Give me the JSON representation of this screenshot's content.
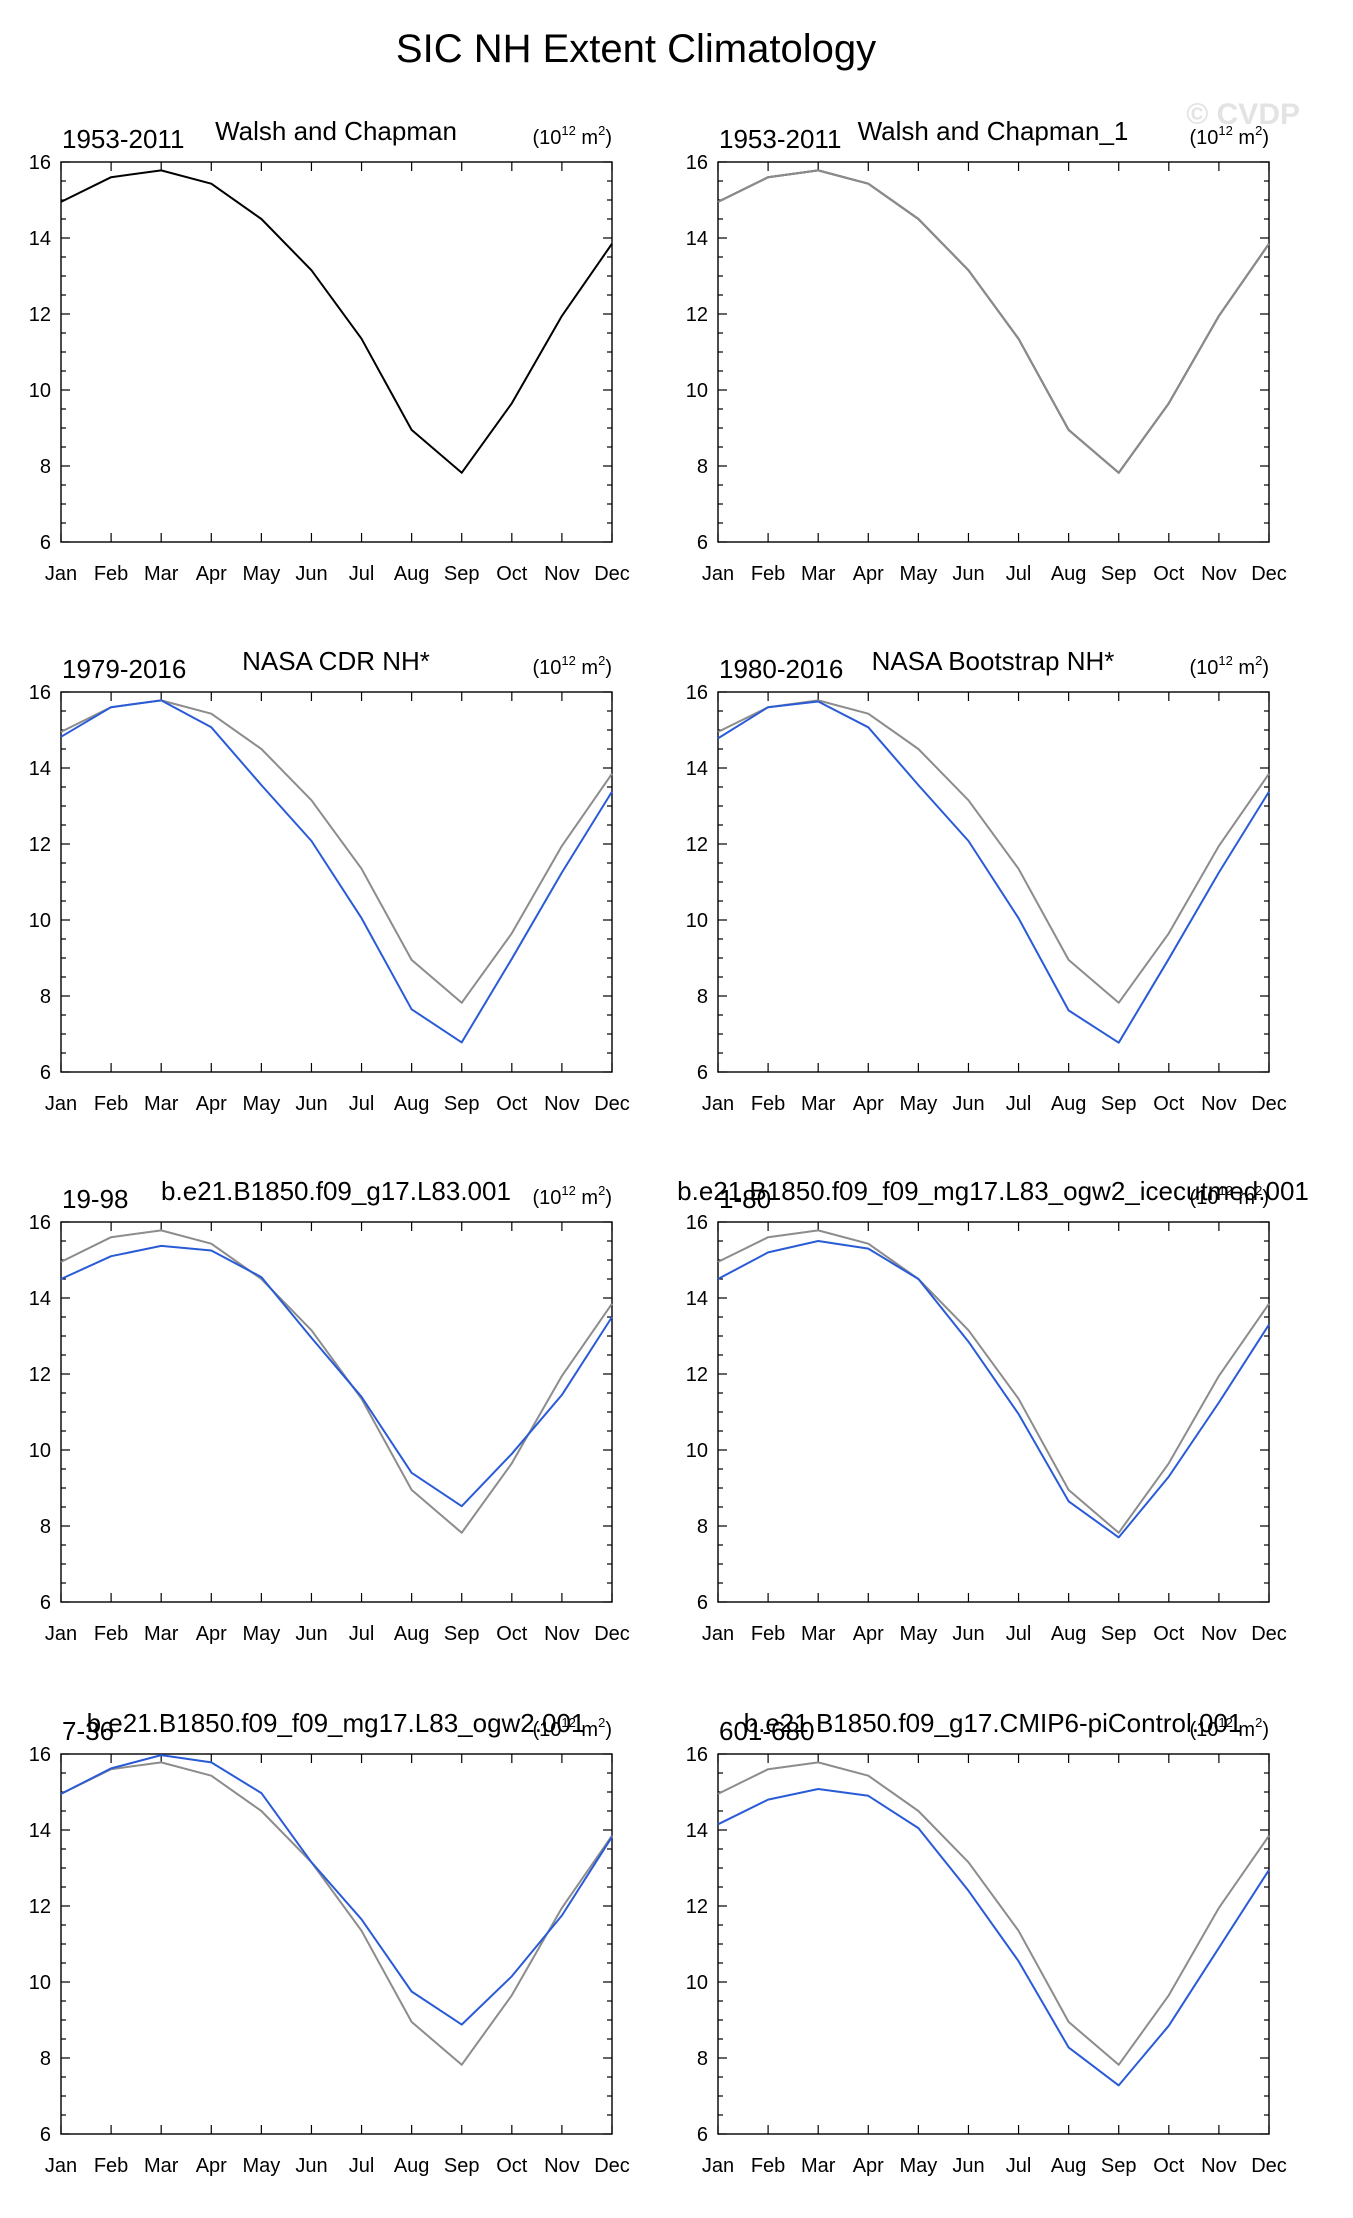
{
  "figure": {
    "title": "SIC NH Extent Climatology",
    "watermark": "© CVDP"
  },
  "colors": {
    "reference_line": "#8c8c8c",
    "model_line": "#2a5bd7",
    "first_panel_line": "#000000",
    "axis": "#000000"
  },
  "chart_data": [
    {
      "type": "line",
      "left_label": "1953-2011",
      "title": "Walsh and Chapman",
      "units_base": "(10",
      "units_exp": "12",
      "units_tail": " m",
      "units_sq": "2",
      "units_close": ")",
      "categories": [
        "Jan",
        "Feb",
        "Mar",
        "Apr",
        "May",
        "Jun",
        "Jul",
        "Aug",
        "Sep",
        "Oct",
        "Nov",
        "Dec"
      ],
      "ylim": [
        6,
        16
      ],
      "yticks": [
        6,
        8,
        10,
        12,
        14,
        16
      ],
      "series": [
        {
          "name": "Walsh and Chapman",
          "color": "#000000",
          "values": [
            14.95,
            15.6,
            15.78,
            15.43,
            14.5,
            13.15,
            11.35,
            8.95,
            7.82,
            9.65,
            11.95,
            13.85
          ]
        }
      ]
    },
    {
      "type": "line",
      "left_label": "1953-2011",
      "title": "Walsh and Chapman_1",
      "units_base": "(10",
      "units_exp": "12",
      "units_tail": " m",
      "units_sq": "2",
      "units_close": ")",
      "categories": [
        "Jan",
        "Feb",
        "Mar",
        "Apr",
        "May",
        "Jun",
        "Jul",
        "Aug",
        "Sep",
        "Oct",
        "Nov",
        "Dec"
      ],
      "ylim": [
        6,
        16
      ],
      "yticks": [
        6,
        8,
        10,
        12,
        14,
        16
      ],
      "series": [
        {
          "name": "Walsh and Chapman",
          "color": "#000000",
          "values": [
            14.95,
            15.6,
            15.78,
            15.43,
            14.5,
            13.15,
            11.35,
            8.95,
            7.82,
            9.65,
            11.95,
            13.85
          ]
        },
        {
          "name": "Walsh and Chapman_1",
          "color": "#8c8c8c",
          "values": [
            14.95,
            15.6,
            15.78,
            15.43,
            14.5,
            13.15,
            11.35,
            8.95,
            7.82,
            9.65,
            11.95,
            13.85
          ]
        }
      ]
    },
    {
      "type": "line",
      "left_label": "1979-2016",
      "title": "NASA CDR NH*",
      "units_base": "(10",
      "units_exp": "12",
      "units_tail": " m",
      "units_sq": "2",
      "units_close": ")",
      "categories": [
        "Jan",
        "Feb",
        "Mar",
        "Apr",
        "May",
        "Jun",
        "Jul",
        "Aug",
        "Sep",
        "Oct",
        "Nov",
        "Dec"
      ],
      "ylim": [
        6,
        16
      ],
      "yticks": [
        6,
        8,
        10,
        12,
        14,
        16
      ],
      "series": [
        {
          "name": "Walsh and Chapman",
          "color": "#8c8c8c",
          "values": [
            14.95,
            15.6,
            15.78,
            15.43,
            14.5,
            13.15,
            11.35,
            8.95,
            7.82,
            9.65,
            11.95,
            13.85
          ]
        },
        {
          "name": "NASA CDR NH*",
          "color": "#2a5bd7",
          "values": [
            14.82,
            15.6,
            15.78,
            15.07,
            13.55,
            12.08,
            10.05,
            7.65,
            6.78,
            8.98,
            11.25,
            13.38
          ]
        }
      ]
    },
    {
      "type": "line",
      "left_label": "1980-2016",
      "title": "NASA Bootstrap NH*",
      "units_base": "(10",
      "units_exp": "12",
      "units_tail": " m",
      "units_sq": "2",
      "units_close": ")",
      "categories": [
        "Jan",
        "Feb",
        "Mar",
        "Apr",
        "May",
        "Jun",
        "Jul",
        "Aug",
        "Sep",
        "Oct",
        "Nov",
        "Dec"
      ],
      "ylim": [
        6,
        16
      ],
      "yticks": [
        6,
        8,
        10,
        12,
        14,
        16
      ],
      "series": [
        {
          "name": "Walsh and Chapman",
          "color": "#8c8c8c",
          "values": [
            14.95,
            15.6,
            15.78,
            15.43,
            14.5,
            13.15,
            11.35,
            8.95,
            7.82,
            9.65,
            11.95,
            13.85
          ]
        },
        {
          "name": "NASA Bootstrap NH*",
          "color": "#2a5bd7",
          "values": [
            14.78,
            15.6,
            15.75,
            15.07,
            13.55,
            12.08,
            10.05,
            7.62,
            6.77,
            8.98,
            11.25,
            13.38
          ]
        }
      ]
    },
    {
      "type": "line",
      "left_label": "19-98",
      "title": "b.e21.B1850.f09_g17.L83.001",
      "units_base": "(10",
      "units_exp": "12",
      "units_tail": " m",
      "units_sq": "2",
      "units_close": ")",
      "categories": [
        "Jan",
        "Feb",
        "Mar",
        "Apr",
        "May",
        "Jun",
        "Jul",
        "Aug",
        "Sep",
        "Oct",
        "Nov",
        "Dec"
      ],
      "ylim": [
        6,
        16
      ],
      "yticks": [
        6,
        8,
        10,
        12,
        14,
        16
      ],
      "series": [
        {
          "name": "Walsh and Chapman",
          "color": "#8c8c8c",
          "values": [
            14.95,
            15.6,
            15.78,
            15.43,
            14.5,
            13.15,
            11.35,
            8.95,
            7.82,
            9.65,
            11.95,
            13.85
          ]
        },
        {
          "name": "b.e21.B1850.f09_g17.L83.001",
          "color": "#2a5bd7",
          "values": [
            14.5,
            15.1,
            15.37,
            15.25,
            14.55,
            12.95,
            11.4,
            9.4,
            8.52,
            9.9,
            11.45,
            13.5
          ]
        }
      ]
    },
    {
      "type": "line",
      "left_label": "1-80",
      "title": "b.e21.B1850.f09_f09_mg17.L83_ogw2_icecutmed.001",
      "units_base": "(10",
      "units_exp": "12",
      "units_tail": " m",
      "units_sq": "2",
      "units_close": ")",
      "categories": [
        "Jan",
        "Feb",
        "Mar",
        "Apr",
        "May",
        "Jun",
        "Jul",
        "Aug",
        "Sep",
        "Oct",
        "Nov",
        "Dec"
      ],
      "ylim": [
        6,
        16
      ],
      "yticks": [
        6,
        8,
        10,
        12,
        14,
        16
      ],
      "series": [
        {
          "name": "Walsh and Chapman",
          "color": "#8c8c8c",
          "values": [
            14.95,
            15.6,
            15.78,
            15.43,
            14.5,
            13.15,
            11.35,
            8.95,
            7.82,
            9.65,
            11.95,
            13.85
          ]
        },
        {
          "name": "b.e21.B1850.f09_f09_mg17.L83_ogw2_icecutmed.001",
          "color": "#2a5bd7",
          "values": [
            14.5,
            15.2,
            15.5,
            15.3,
            14.5,
            12.85,
            10.95,
            8.65,
            7.7,
            9.3,
            11.25,
            13.3
          ]
        }
      ]
    },
    {
      "type": "line",
      "left_label": "7-36",
      "title": "b.e21.B1850.f09_f09_mg17.L83_ogw2.001",
      "units_base": "(10",
      "units_exp": "12",
      "units_tail": " m",
      "units_sq": "2",
      "units_close": ")",
      "categories": [
        "Jan",
        "Feb",
        "Mar",
        "Apr",
        "May",
        "Jun",
        "Jul",
        "Aug",
        "Sep",
        "Oct",
        "Nov",
        "Dec"
      ],
      "ylim": [
        6,
        16
      ],
      "yticks": [
        6,
        8,
        10,
        12,
        14,
        16
      ],
      "series": [
        {
          "name": "Walsh and Chapman",
          "color": "#8c8c8c",
          "values": [
            14.95,
            15.6,
            15.78,
            15.43,
            14.5,
            13.15,
            11.35,
            8.95,
            7.82,
            9.65,
            11.95,
            13.85
          ]
        },
        {
          "name": "b.e21.B1850.f09_f09_mg17.L83_ogw2.001",
          "color": "#2a5bd7",
          "values": [
            14.95,
            15.62,
            15.97,
            15.78,
            14.97,
            13.15,
            11.65,
            9.75,
            8.88,
            10.15,
            11.75,
            13.82
          ]
        }
      ]
    },
    {
      "type": "line",
      "left_label": "601-680",
      "title": "b.e21.B1850.f09_g17.CMIP6-piControl.001",
      "units_base": "(10",
      "units_exp": "12",
      "units_tail": " m",
      "units_sq": "2",
      "units_close": ")",
      "categories": [
        "Jan",
        "Feb",
        "Mar",
        "Apr",
        "May",
        "Jun",
        "Jul",
        "Aug",
        "Sep",
        "Oct",
        "Nov",
        "Dec"
      ],
      "ylim": [
        6,
        16
      ],
      "yticks": [
        6,
        8,
        10,
        12,
        14,
        16
      ],
      "series": [
        {
          "name": "Walsh and Chapman",
          "color": "#8c8c8c",
          "values": [
            14.95,
            15.6,
            15.78,
            15.43,
            14.5,
            13.15,
            11.35,
            8.95,
            7.82,
            9.65,
            11.95,
            13.85
          ]
        },
        {
          "name": "b.e21.B1850.f09_g17.CMIP6-piControl.001",
          "color": "#2a5bd7",
          "values": [
            14.15,
            14.8,
            15.08,
            14.9,
            14.05,
            12.4,
            10.55,
            8.28,
            7.28,
            8.85,
            10.9,
            12.95
          ]
        }
      ]
    }
  ]
}
